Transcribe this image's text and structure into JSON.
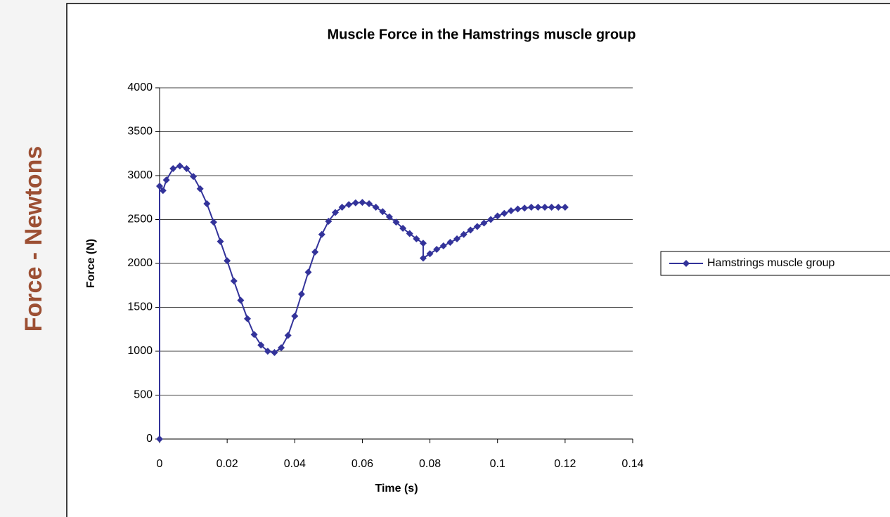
{
  "chart_data": {
    "type": "line",
    "title": "Muscle Force in the Hamstrings muscle group",
    "x_label": "Time (s)",
    "y_label": "Force (N)",
    "side_label": "Force - Newtons",
    "x": [
      0,
      0,
      0.001,
      0.002,
      0.004,
      0.006,
      0.008,
      0.01,
      0.012,
      0.014,
      0.016,
      0.018,
      0.02,
      0.022,
      0.024,
      0.026,
      0.028,
      0.03,
      0.032,
      0.034,
      0.036,
      0.038,
      0.04,
      0.042,
      0.044,
      0.046,
      0.048,
      0.05,
      0.052,
      0.054,
      0.056,
      0.058,
      0.06,
      0.062,
      0.064,
      0.066,
      0.068,
      0.07,
      0.072,
      0.074,
      0.076,
      0.078,
      0.078,
      0.08,
      0.082,
      0.084,
      0.086,
      0.088,
      0.09,
      0.092,
      0.094,
      0.096,
      0.098,
      0.1,
      0.102,
      0.104,
      0.106,
      0.108,
      0.11,
      0.112,
      0.114,
      0.116,
      0.118,
      0.12
    ],
    "series": [
      {
        "name": "Hamstrings muscle group",
        "color": "#33339a",
        "values": [
          0,
          2880,
          2830,
          2950,
          3080,
          3110,
          3080,
          2990,
          2850,
          2680,
          2470,
          2250,
          2030,
          1800,
          1580,
          1370,
          1190,
          1070,
          1000,
          985,
          1040,
          1180,
          1400,
          1650,
          1900,
          2130,
          2330,
          2480,
          2580,
          2640,
          2670,
          2690,
          2695,
          2680,
          2640,
          2590,
          2530,
          2470,
          2400,
          2340,
          2280,
          2230,
          2060,
          2110,
          2160,
          2200,
          2240,
          2280,
          2330,
          2380,
          2420,
          2460,
          2500,
          2540,
          2570,
          2600,
          2620,
          2630,
          2640,
          2640,
          2640,
          2640,
          2640,
          2640
        ]
      }
    ],
    "xlim": [
      0,
      0.14
    ],
    "xticks": [
      0,
      0.02,
      0.04,
      0.06,
      0.08,
      0.1,
      0.12,
      0.14
    ],
    "ylim": [
      0,
      4000
    ],
    "yticks": [
      0,
      500,
      1000,
      1500,
      2000,
      2500,
      3000,
      3500,
      4000
    ],
    "grid": true,
    "legend": "right"
  }
}
